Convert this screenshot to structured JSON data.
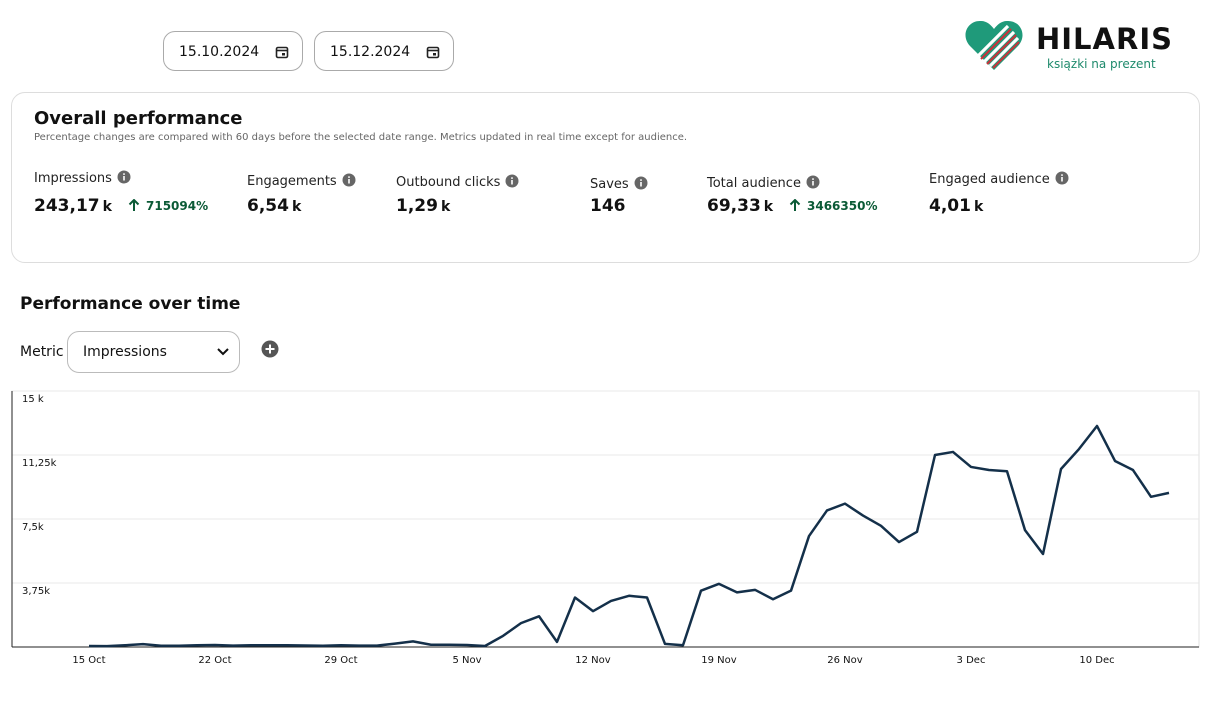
{
  "date_range": {
    "start": "15.10.2024",
    "end": "15.12.2024"
  },
  "logo": {
    "name": "HILARIS",
    "tagline": "książki na prezent"
  },
  "overall": {
    "title": "Overall performance",
    "subtitle": "Percentage changes are compared with 60 days before the selected date range. Metrics updated in real time except for audience.",
    "metrics": [
      {
        "label": "Impressions",
        "value": "243,17",
        "unit": "k",
        "change": "715094%"
      },
      {
        "label": "Engagements",
        "value": "6,54",
        "unit": "k"
      },
      {
        "label": "Outbound clicks",
        "value": "1,29",
        "unit": "k"
      },
      {
        "label": "Saves",
        "value": "146"
      },
      {
        "label": "Total audience",
        "value": "69,33",
        "unit": "k",
        "change": "3466350%"
      },
      {
        "label": "Engaged audience",
        "value": "4,01",
        "unit": "k"
      }
    ]
  },
  "performance": {
    "title": "Performance over time",
    "metric_label": "Metric",
    "metric_selected": "Impressions"
  },
  "chart_data": {
    "type": "line",
    "color": "#14304a",
    "categories": [
      "15 Oct",
      null,
      null,
      null,
      null,
      null,
      null,
      "22 Oct",
      null,
      null,
      null,
      null,
      null,
      null,
      "29 Oct",
      null,
      null,
      null,
      null,
      null,
      null,
      "5 Nov",
      null,
      null,
      null,
      null,
      null,
      null,
      "12 Nov",
      null,
      null,
      null,
      null,
      null,
      null,
      "19 Nov",
      null,
      null,
      null,
      null,
      null,
      null,
      "26 Nov",
      null,
      null,
      null,
      null,
      null,
      null,
      "3 Dec",
      null,
      null,
      null,
      null,
      null,
      null,
      "10 Dec",
      null,
      null,
      null,
      null
    ],
    "values": [
      60,
      50,
      100,
      170,
      70,
      70,
      100,
      120,
      80,
      100,
      100,
      100,
      90,
      70,
      100,
      80,
      80,
      200,
      330,
      130,
      130,
      120,
      60,
      650,
      1400,
      1800,
      300,
      2900,
      2100,
      2700,
      3000,
      2900,
      180,
      100,
      3300,
      3700,
      3200,
      3350,
      2800,
      3300,
      6500,
      8000,
      8400,
      7700,
      7100,
      6150,
      6750,
      11250,
      11430,
      10550,
      10370,
      10300,
      6850,
      5450,
      10430,
      11600,
      12950,
      10900,
      10370,
      8800,
      9030
    ],
    "ylim": [
      0,
      15000
    ],
    "yticks": [
      {
        "value": 3750,
        "label": "3,75k"
      },
      {
        "value": 7500,
        "label": "7,5k"
      },
      {
        "value": 11250,
        "label": "11,25k"
      },
      {
        "value": 15000,
        "label": "15 k"
      }
    ],
    "grid": true
  }
}
